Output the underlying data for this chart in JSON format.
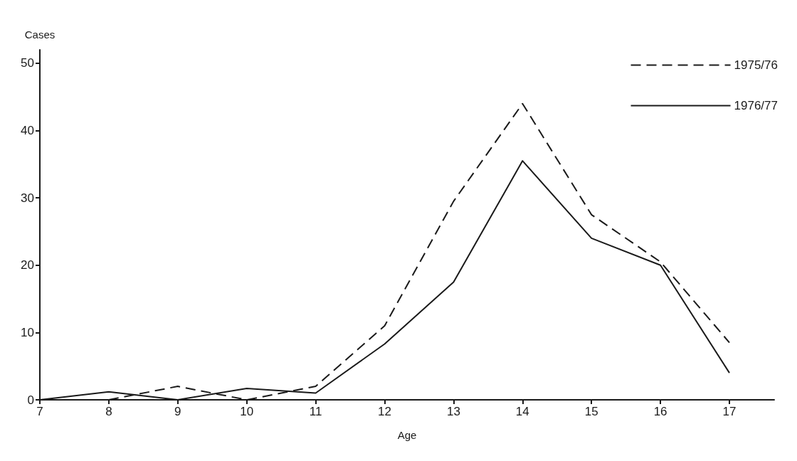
{
  "chart_data": {
    "type": "line",
    "xlabel": "Age",
    "ylabel": "Cases",
    "x": [
      7,
      8,
      9,
      10,
      11,
      12,
      13,
      14,
      15,
      16,
      17
    ],
    "series": [
      {
        "name": "1975/76",
        "color": "#1a1a1a",
        "line_style": "dashed",
        "values": [
          null,
          0,
          2,
          0,
          2,
          11,
          29.5,
          44,
          27.5,
          20.5,
          8.5
        ]
      },
      {
        "name": "1976/77",
        "color": "#1a1a1a",
        "line_style": "solid",
        "values": [
          0,
          1.2,
          0,
          1.7,
          1,
          8.3,
          17.5,
          35.5,
          24,
          20,
          4
        ]
      }
    ],
    "xlim": [
      7,
      17.65
    ],
    "xticks": [
      7,
      8,
      9,
      10,
      11,
      12,
      13,
      14,
      15,
      16,
      17
    ],
    "ylim": [
      0,
      52
    ],
    "yticks": [
      0,
      10,
      20,
      30,
      40,
      50
    ],
    "grid": false,
    "legend": "top right",
    "marker": "none"
  }
}
